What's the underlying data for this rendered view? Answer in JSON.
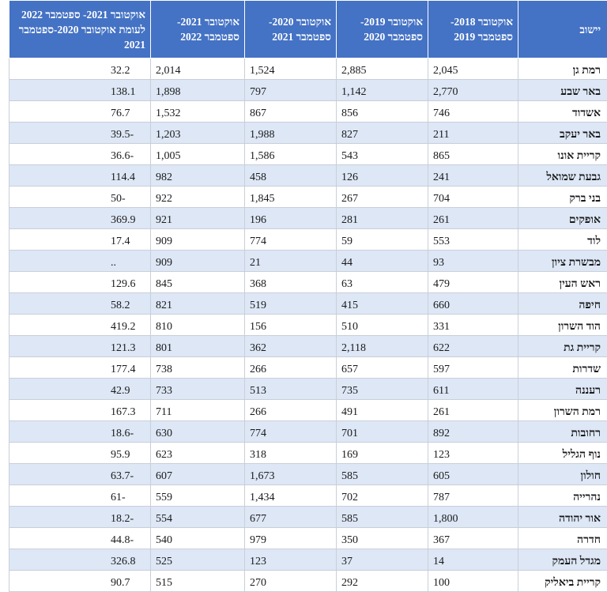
{
  "table": {
    "headers": [
      "יישוב",
      "אוקטובר 2018- ספטמבר 2019",
      "אוקטובר 2019- ספטמבר 2020",
      "אוקטובר 2020- ספטמבר 2021",
      "אוקטובר 2021- ספטמבר 2022",
      "אוקטובר 2021- ספטמבר 2022 לעומת אוקטובר 2020-ספטמבר 2021"
    ],
    "rows": [
      [
        "רמת גן",
        "2,045",
        "2,885",
        "1,524",
        "2,014",
        "32.2"
      ],
      [
        "באר שבע",
        "2,770",
        "1,142",
        "797",
        "1,898",
        "138.1"
      ],
      [
        "אשדוד",
        "746",
        "856",
        "867",
        "1,532",
        "76.7"
      ],
      [
        "באר יעקב",
        "211",
        "827",
        "1,988",
        "1,203",
        "39.5-"
      ],
      [
        "קריית אונו",
        "865",
        "543",
        "1,586",
        "1,005",
        "36.6-"
      ],
      [
        "גבעת שמואל",
        "241",
        "126",
        "458",
        "982",
        "114.4"
      ],
      [
        "בני ברק",
        "704",
        "267",
        "1,845",
        "922",
        "50-"
      ],
      [
        "אופקים",
        "261",
        "281",
        "196",
        "921",
        "369.9"
      ],
      [
        "לוד",
        "553",
        "59",
        "774",
        "909",
        "17.4"
      ],
      [
        "מבשרת ציון",
        "93",
        "44",
        "21",
        "909",
        ".."
      ],
      [
        "ראש העין",
        "479",
        "63",
        "368",
        "845",
        "129.6"
      ],
      [
        "חיפה",
        "660",
        "415",
        "519",
        "821",
        "58.2"
      ],
      [
        "הוד השרון",
        "331",
        "510",
        "156",
        "810",
        "419.2"
      ],
      [
        "קריית גת",
        "622",
        "2,118",
        "362",
        "801",
        "121.3"
      ],
      [
        "שדרות",
        "597",
        "657",
        "266",
        "738",
        "177.4"
      ],
      [
        "רעננה",
        "611",
        "735",
        "513",
        "733",
        "42.9"
      ],
      [
        "רמת השרון",
        "261",
        "491",
        "266",
        "711",
        "167.3"
      ],
      [
        "רחובות",
        "892",
        "701",
        "774",
        "630",
        "18.6-"
      ],
      [
        "נוף הגליל",
        "123",
        "169",
        "318",
        "623",
        "95.9"
      ],
      [
        "חולון",
        "605",
        "585",
        "1,673",
        "607",
        "63.7-"
      ],
      [
        "נהרייה",
        "787",
        "702",
        "1,434",
        "559",
        "61-"
      ],
      [
        "אור יהודה",
        "1,800",
        "585",
        "677",
        "554",
        "18.2-"
      ],
      [
        "חדרה",
        "367",
        "350",
        "979",
        "540",
        "44.8-"
      ],
      [
        "מגדל העמק",
        "14",
        "37",
        "123",
        "525",
        "326.8"
      ],
      [
        "קריית ביאליק",
        "100",
        "292",
        "270",
        "515",
        "90.7"
      ]
    ]
  }
}
